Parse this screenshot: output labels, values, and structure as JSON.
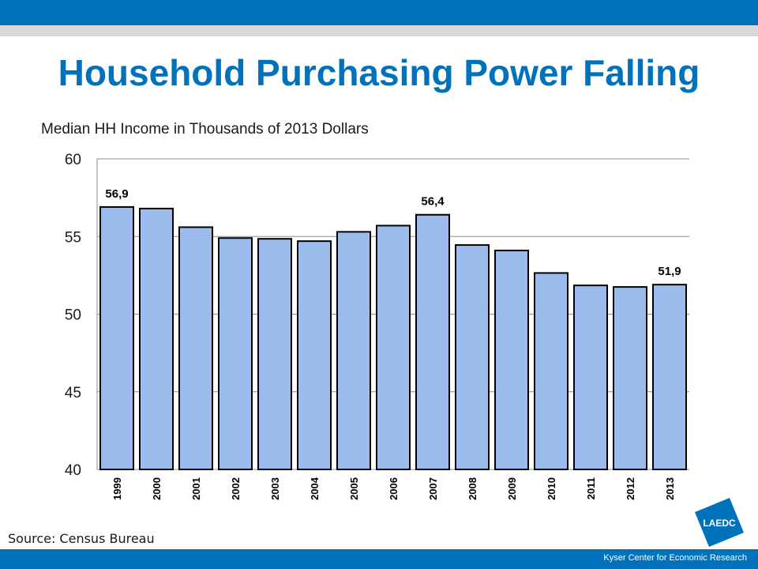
{
  "slide": {
    "title": "Household Purchasing Power Falling",
    "subtitle": "Median HH Income in Thousands of 2013 Dollars",
    "source": "Source: Census Bureau",
    "footer": "Kyser Center for Economic Research",
    "logo_text": "LAEDC"
  },
  "colors": {
    "brand_blue": "#0072bc",
    "stripe_gray": "#d9d9d9",
    "bar_fill": "#9bbcec",
    "bar_stroke": "#000000"
  },
  "chart_data": {
    "type": "bar",
    "title": "",
    "xlabel": "",
    "ylabel": "",
    "categories": [
      "1999",
      "2000",
      "2001",
      "2002",
      "2003",
      "2004",
      "2005",
      "2006",
      "2007",
      "2008",
      "2009",
      "2010",
      "2011",
      "2012",
      "2013"
    ],
    "series": [
      {
        "values": [
          56.9,
          56.8,
          55.6,
          54.9,
          54.85,
          54.7,
          55.3,
          55.7,
          56.4,
          54.45,
          54.1,
          52.65,
          51.85,
          51.75,
          51.9
        ]
      }
    ],
    "data_labels": [
      {
        "category": "1999",
        "text": "56,9"
      },
      {
        "category": "2007",
        "text": "56,4"
      },
      {
        "category": "2013",
        "text": "51,9"
      }
    ],
    "ylim": [
      40,
      60
    ],
    "yticks": [
      "40",
      "45",
      "50",
      "55",
      "60"
    ],
    "grid": true,
    "legend": "none"
  }
}
